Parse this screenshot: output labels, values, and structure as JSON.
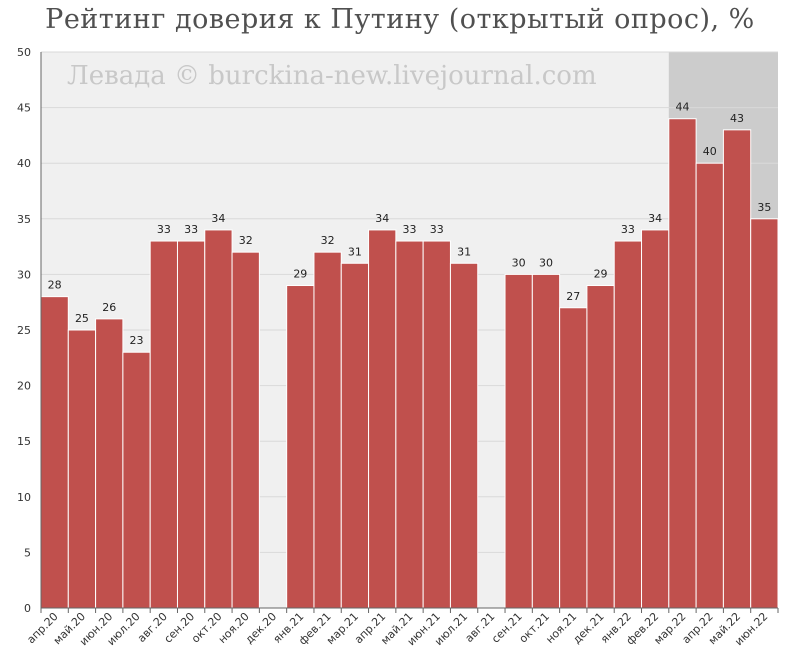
{
  "chart_data": {
    "type": "bar",
    "title": "Рейтинг доверия к Путину (открытый опрос), %",
    "watermark": "Левада © burckina-new.livejournal.com",
    "categories": [
      "апр.20",
      "май.20",
      "июн.20",
      "июл.20",
      "авг.20",
      "сен.20",
      "окт.20",
      "ноя.20",
      "дек.20",
      "янв.21",
      "фев.21",
      "мар.21",
      "апр.21",
      "май.21",
      "июн.21",
      "июл.21",
      "авг.21",
      "сен.21",
      "окт.21",
      "ноя.21",
      "дек.21",
      "янв.22",
      "фев.22",
      "мар.22",
      "апр.22",
      "май.22",
      "июн.22"
    ],
    "values": [
      28,
      25,
      26,
      23,
      33,
      33,
      34,
      32,
      null,
      29,
      32,
      31,
      34,
      33,
      33,
      31,
      null,
      30,
      30,
      27,
      29,
      33,
      34,
      44,
      40,
      43,
      35
    ],
    "ylim": [
      0,
      50
    ],
    "yticks": [
      0,
      5,
      10,
      15,
      20,
      25,
      30,
      35,
      40,
      45,
      50
    ],
    "highlight_from": "мар.22",
    "grid": true,
    "colors": {
      "bar": "#c0504d",
      "bar_edge": "#ffffff",
      "plot_bg": "#f0f0f0",
      "highlight_bg": "#cccccc",
      "grid": "#d9d9d9",
      "axis": "#666666"
    }
  }
}
